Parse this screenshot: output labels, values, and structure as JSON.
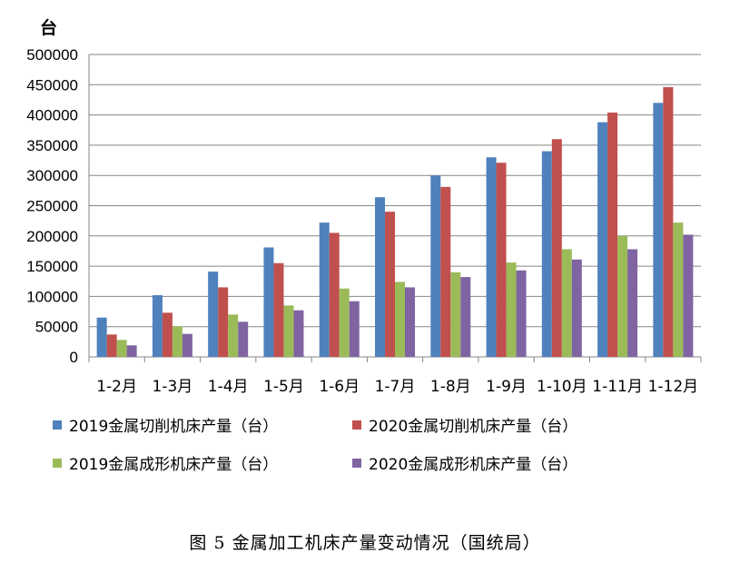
{
  "chart_data": {
    "type": "bar",
    "unit_label": "台",
    "caption": "图 5  金属加工机床产量变动情况（国统局）",
    "categories": [
      "1-2月",
      "1-3月",
      "1-4月",
      "1-5月",
      "1-6月",
      "1-7月",
      "1-8月",
      "1-9月",
      "1-10月",
      "1-11月",
      "1-12月"
    ],
    "y_ticks": [
      "0",
      "50000",
      "100000",
      "150000",
      "200000",
      "250000",
      "300000",
      "350000",
      "400000",
      "450000",
      "500000"
    ],
    "ylim": [
      0,
      500000
    ],
    "grid": true,
    "legend_position": "bottom",
    "series": [
      {
        "name": "2019金属切削机床产量（台）",
        "color": "#4F81BD",
        "values": [
          65000,
          102000,
          141000,
          181000,
          222000,
          264000,
          300000,
          330000,
          340000,
          388000,
          420000
        ]
      },
      {
        "name": "2020金属切削机床产量（台）",
        "color": "#C0504D",
        "values": [
          37000,
          73000,
          115000,
          155000,
          205000,
          240000,
          281000,
          321000,
          360000,
          404000,
          446000
        ]
      },
      {
        "name": "2019金属成形机床产量（台）",
        "color": "#9BBB59",
        "values": [
          28000,
          50000,
          70000,
          85000,
          113000,
          124000,
          140000,
          156000,
          178000,
          200000,
          222000
        ]
      },
      {
        "name": "2020金属成形机床产量（台）",
        "color": "#8064A2",
        "values": [
          19000,
          38000,
          58000,
          77000,
          92000,
          115000,
          132000,
          143000,
          161000,
          178000,
          202000
        ]
      }
    ]
  }
}
